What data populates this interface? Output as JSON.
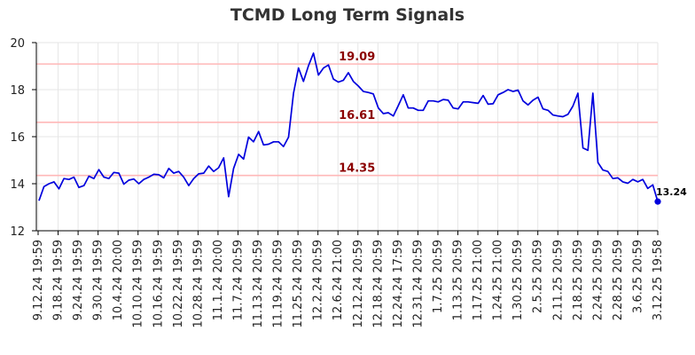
{
  "chart_data": {
    "type": "line",
    "title": "TCMD Long Term Signals",
    "xlabel": "",
    "ylabel": "",
    "ylim": [
      12,
      20
    ],
    "yticks": [
      "12",
      "14",
      "16",
      "18",
      "20"
    ],
    "grid": true,
    "xtick_labels": [
      "9.12.24 19:59",
      "9.18.24 19:59",
      "9.24.24 19:59",
      "9.30.24 19:59",
      "10.4.24 20:00",
      "10.10.24 19:59",
      "10.16.24 19:59",
      "10.22.24 19:59",
      "10.28.24 19:59",
      "11.1.24 20:00",
      "11.7.24 20:59",
      "11.13.24 20:59",
      "11.19.24 20:59",
      "11.25.24 20:59",
      "12.2.24 20:59",
      "12.6.24 21:00",
      "12.12.24 20:59",
      "12.18.24 20:59",
      "12.24.24 17:59",
      "12.31.24 20:59",
      "1.7.25 20:59",
      "1.13.25 20:59",
      "1.17.25 21:00",
      "1.24.25 21:00",
      "1.30.25 20:59",
      "2.5.25 20:59",
      "2.11.25 20:59",
      "2.18.25 20:59",
      "2.24.25 20:59",
      "2.28.25 20:59",
      "3.6.25 20:59",
      "3.12.25 19:58"
    ],
    "series": [
      {
        "color": "#0000dd",
        "values": [
          13.28,
          13.88,
          14.0,
          14.08,
          13.78,
          14.22,
          14.18,
          14.28,
          13.84,
          13.92,
          14.32,
          14.22,
          14.6,
          14.28,
          14.22,
          14.48,
          14.45,
          13.98,
          14.15,
          14.2,
          14.0,
          14.18,
          14.28,
          14.4,
          14.38,
          14.25,
          14.65,
          14.45,
          14.52,
          14.28,
          13.92,
          14.22,
          14.42,
          14.45,
          14.75,
          14.52,
          14.68,
          15.1,
          13.45,
          14.65,
          15.25,
          15.05,
          15.98,
          15.78,
          16.22,
          15.65,
          15.68,
          15.78,
          15.78,
          15.58,
          15.98,
          17.85,
          18.92,
          18.35,
          19.02,
          19.55,
          18.62,
          18.92,
          19.05,
          18.45,
          18.32,
          18.4,
          18.72,
          18.35,
          18.15,
          17.92,
          17.88,
          17.82,
          17.22,
          16.98,
          17.02,
          16.88,
          17.32,
          17.78,
          17.22,
          17.22,
          17.12,
          17.12,
          17.52,
          17.52,
          17.48,
          17.58,
          17.55,
          17.22,
          17.18,
          17.48,
          17.48,
          17.45,
          17.42,
          17.75,
          17.38,
          17.4,
          17.78,
          17.88,
          18.0,
          17.92,
          17.98,
          17.52,
          17.35,
          17.55,
          17.68,
          17.18,
          17.12,
          16.92,
          16.88,
          16.85,
          16.95,
          17.3,
          17.85,
          15.52,
          15.42,
          17.85,
          14.9,
          14.58,
          14.52,
          14.22,
          14.25,
          14.08,
          14.02,
          14.18,
          14.08,
          14.18,
          13.8,
          13.95,
          13.24
        ]
      }
    ],
    "levels": [
      {
        "value": 19.09,
        "label": "19.09"
      },
      {
        "value": 16.61,
        "label": "16.61"
      },
      {
        "value": 14.35,
        "label": "14.35"
      }
    ],
    "last_point": {
      "value": 13.24,
      "label": "13.24"
    },
    "level_line_color": "#ffb8b8",
    "level_label_color": "#8b0000",
    "grid_color": "#e6e6e6",
    "axis_color": "#000000"
  }
}
